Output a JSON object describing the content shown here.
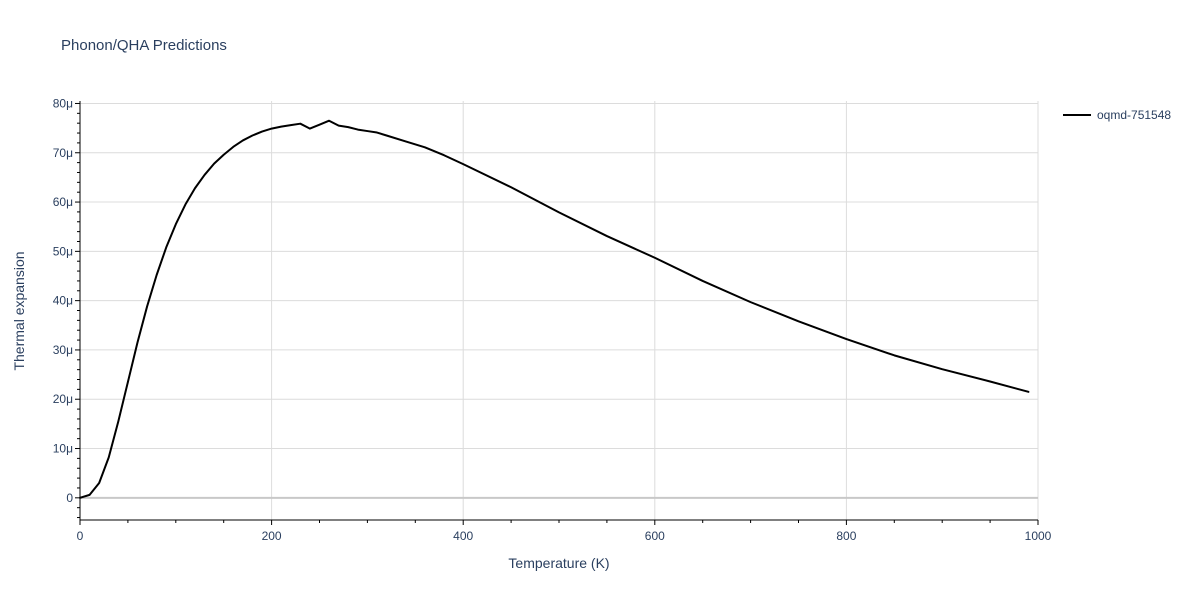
{
  "chart_data": {
    "type": "line",
    "title": "Phonon/QHA Predictions",
    "xlabel": "Temperature (K)",
    "ylabel": "Thermal expansion",
    "xlim": [
      0,
      1000
    ],
    "ylim": [
      -4.5e-06,
      8.05e-05
    ],
    "x_ticks": [
      0,
      200,
      400,
      600,
      800,
      1000
    ],
    "x_tick_labels": [
      "0",
      "200",
      "400",
      "600",
      "800",
      "1000"
    ],
    "y_ticks": [
      0,
      1e-05,
      2e-05,
      3e-05,
      4e-05,
      5e-05,
      6e-05,
      7e-05,
      8e-05
    ],
    "y_tick_labels": [
      "0",
      "10μ",
      "20μ",
      "30μ",
      "40μ",
      "50μ",
      "60μ",
      "70μ",
      "80μ"
    ],
    "grid": true,
    "legend_position": "top-right",
    "series": [
      {
        "name": "oqmd-751548",
        "color": "#000000",
        "x": [
          0,
          10,
          20,
          30,
          40,
          50,
          60,
          70,
          80,
          90,
          100,
          110,
          120,
          130,
          140,
          150,
          160,
          170,
          180,
          190,
          200,
          210,
          220,
          230,
          240,
          250,
          260,
          270,
          280,
          290,
          300,
          310,
          320,
          340,
          360,
          380,
          400,
          450,
          500,
          550,
          600,
          650,
          700,
          750,
          800,
          850,
          900,
          950,
          990
        ],
        "y": [
          0,
          6e-07,
          3e-06,
          8.2e-06,
          1.55e-05,
          2.35e-05,
          3.15e-05,
          3.88e-05,
          4.52e-05,
          5.08e-05,
          5.55e-05,
          5.95e-05,
          6.28e-05,
          6.55e-05,
          6.78e-05,
          6.96e-05,
          7.12e-05,
          7.25e-05,
          7.35e-05,
          7.43e-05,
          7.49e-05,
          7.53e-05,
          7.56e-05,
          7.59e-05,
          7.49e-05,
          7.57e-05,
          7.65e-05,
          7.55e-05,
          7.52e-05,
          7.47e-05,
          7.44e-05,
          7.41e-05,
          7.35e-05,
          7.23e-05,
          7.11e-05,
          6.95e-05,
          6.77e-05,
          6.3e-05,
          5.79e-05,
          5.31e-05,
          4.87e-05,
          4.4e-05,
          3.97e-05,
          3.58e-05,
          3.22e-05,
          2.89e-05,
          2.61e-05,
          2.36e-05,
          2.15e-05
        ]
      }
    ]
  }
}
